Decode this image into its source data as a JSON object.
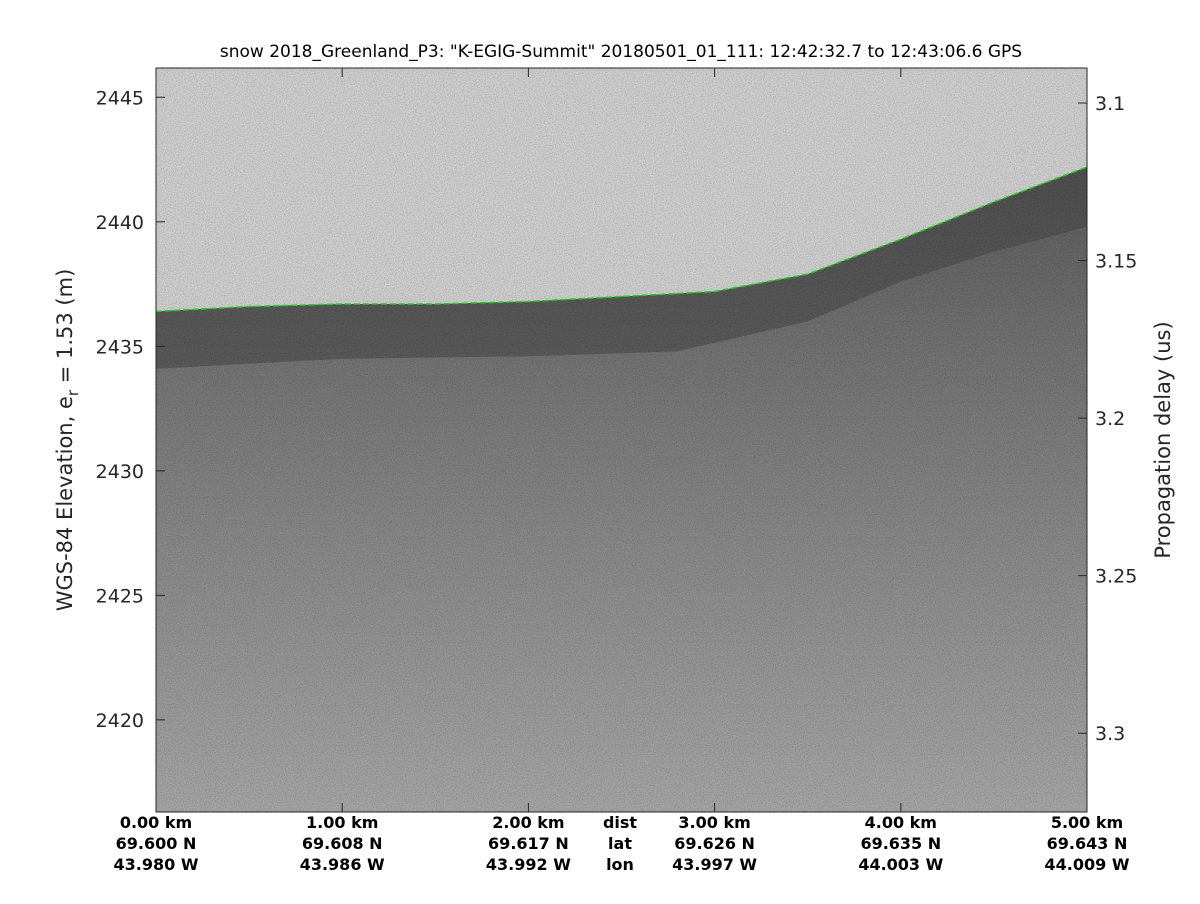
{
  "chart_data": {
    "type": "heatmap",
    "title": "snow 2018_Greenland_P3: \"K-EGIG-Summit\"  20180501_01_111: 12:42:32.7 to 12:43:06.6 GPS",
    "ylabel_left": "WGS-84 Elevation, e",
    "ylabel_left_sub": "r",
    "ylabel_left_suffix": " = 1.53 (m)",
    "ylabel_right": "Propagation delay (us)",
    "ylim_left": [
      2416.3,
      2447.3
    ],
    "yticks_left": [
      2445,
      2440,
      2435,
      2430,
      2425,
      2420
    ],
    "ylim_right": [
      3.08,
      3.325
    ],
    "yticks_right": [
      "3.1",
      "3.15",
      "3.2",
      "3.25",
      "3.3"
    ],
    "xlim_km": [
      0,
      5
    ],
    "x_rows": {
      "dist": [
        "0.00 km",
        "1.00 km",
        "2.00 km",
        "3.00 km",
        "4.00 km",
        "5.00 km"
      ],
      "lat": [
        "69.600 N",
        "69.608 N",
        "69.617 N",
        "69.626 N",
        "69.635 N",
        "69.643 N"
      ],
      "lon": [
        "43.980 W",
        "43.986 W",
        "43.992 W",
        "43.997 W",
        "44.003 W",
        "44.009 W"
      ],
      "row_labels": [
        "dist",
        "lat",
        "lon"
      ]
    },
    "surface_elevation": [
      [
        0,
        2436.4
      ],
      [
        0.5,
        2436.6
      ],
      [
        1,
        2436.7
      ],
      [
        1.5,
        2436.7
      ],
      [
        2,
        2436.8
      ],
      [
        2.5,
        2437.0
      ],
      [
        3,
        2437.2
      ],
      [
        3.5,
        2437.9
      ],
      [
        4,
        2439.3
      ],
      [
        4.5,
        2440.8
      ],
      [
        5,
        2442.2
      ]
    ],
    "internal_layer_elevation": [
      [
        0,
        2434.1
      ],
      [
        1,
        2434.5
      ],
      [
        2,
        2434.6
      ],
      [
        2.8,
        2434.8
      ],
      [
        3.5,
        2436.0
      ],
      [
        4,
        2437.6
      ],
      [
        4.5,
        2438.8
      ],
      [
        5,
        2439.8
      ]
    ],
    "colormap": "gray",
    "surface_line_color": "#22cc22"
  }
}
